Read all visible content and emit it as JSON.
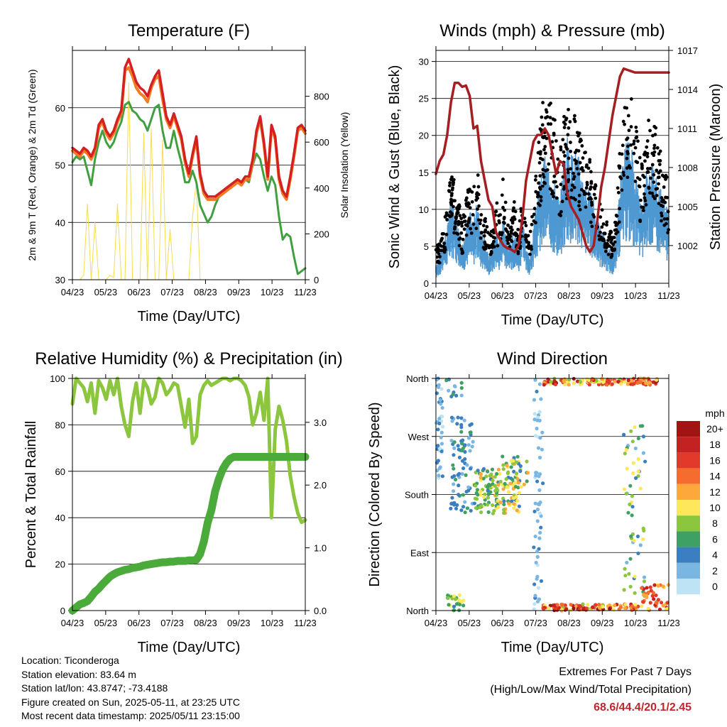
{
  "chart_data": [
    {
      "type": "line",
      "title": "Temperature (F)",
      "xlabel": "Time (Day/UTC)",
      "ylabel": "2m & 9m T (Red, Orange) & 2m Td (Green)",
      "y2label": "Solar Insolation (Yellow)",
      "x_ticks": [
        "04/23",
        "05/23",
        "06/23",
        "07/23",
        "08/23",
        "09/23",
        "10/23",
        "11/23"
      ],
      "ylim": [
        30,
        70
      ],
      "y_ticks": [
        30,
        40,
        50,
        60
      ],
      "y2lim": [
        0,
        1000
      ],
      "y2_ticks": [
        0,
        200,
        400,
        600,
        800
      ],
      "grid": "horizontal",
      "colors": {
        "t2m": "#d42020",
        "t9m": "#f47a24",
        "td": "#40a040",
        "solar": "#f5dc50"
      },
      "series": [
        {
          "key": "t2m",
          "values": [
            53,
            52.5,
            52,
            53,
            52.5,
            51.5,
            53,
            57,
            58,
            56,
            55,
            56,
            58,
            59.5,
            67,
            68.5,
            66.5,
            64.5,
            63.5,
            63,
            62,
            64,
            65.5,
            66.5,
            62.5,
            58.5,
            57,
            59,
            57,
            55,
            51,
            48.5,
            52,
            55,
            48.5,
            45.5,
            44.5,
            44.5,
            44.5,
            45,
            45.5,
            46,
            46.5,
            47,
            47.5,
            47,
            48,
            48,
            51,
            56,
            58.5,
            54,
            48,
            57,
            55,
            48,
            45.5,
            44.5,
            48,
            52,
            56.5,
            57,
            56
          ]
        },
        {
          "key": "t9m",
          "values": [
            52.5,
            52,
            51.5,
            52.5,
            52,
            51,
            52.5,
            56.5,
            57.5,
            55.5,
            54.5,
            55.5,
            57.5,
            59,
            66.5,
            67,
            65.5,
            63.5,
            62.5,
            62,
            61,
            63.5,
            65,
            65.5,
            61.5,
            58,
            56.5,
            58.5,
            56.5,
            54.5,
            50.5,
            48,
            51.5,
            54.5,
            48,
            45,
            44,
            44,
            44,
            44.5,
            45,
            45.5,
            46,
            46.5,
            47,
            46.5,
            47.5,
            47.5,
            50.5,
            55.5,
            58,
            53.5,
            47.5,
            56.5,
            54.5,
            47.5,
            45,
            44,
            47.5,
            51.5,
            56,
            56.5,
            55.5
          ]
        },
        {
          "key": "td",
          "values": [
            50.5,
            51.5,
            51,
            51.5,
            49,
            46.5,
            51,
            54,
            56,
            54,
            53,
            54,
            56,
            57.5,
            60.5,
            61,
            59.5,
            59,
            58,
            57.5,
            56,
            58,
            60,
            60.5,
            56,
            53,
            53,
            56,
            53,
            50.5,
            47,
            47,
            49,
            47,
            43,
            41.5,
            40,
            41,
            43,
            44.5,
            45,
            45.5,
            46,
            46.5,
            47,
            46.5,
            47.5,
            47,
            50,
            52,
            51,
            48,
            45.5,
            48,
            46.5,
            41,
            37,
            38,
            37.5,
            34,
            31,
            31.5,
            32
          ]
        },
        {
          "key": "solar",
          "values": [
            0,
            0,
            0,
            20,
            330,
            0,
            250,
            0,
            0,
            0,
            20,
            10,
            330,
            0,
            0,
            860,
            0,
            0,
            0,
            640,
            0,
            660,
            0,
            0,
            610,
            0,
            220,
            0,
            0,
            0,
            0,
            0,
            280,
            430,
            0,
            0,
            0,
            0,
            0,
            0,
            0,
            0,
            0,
            0,
            0,
            0,
            0,
            0,
            0,
            0,
            0,
            0,
            0,
            0,
            0,
            0,
            0,
            0,
            0,
            0,
            0,
            0,
            0
          ]
        }
      ]
    },
    {
      "type": "line",
      "title": "Winds (mph) & Pressure (mb)",
      "xlabel": "Time (Day/UTC)",
      "ylabel": "Sonic Wind & Gust (Blue, Black)",
      "y2label": "Station Pressure (Maroon)",
      "x_ticks": [
        "04/23",
        "05/23",
        "06/23",
        "07/23",
        "08/23",
        "09/23",
        "10/23",
        "11/23"
      ],
      "ylim": [
        0,
        31.5
      ],
      "y_ticks": [
        0,
        5,
        10,
        15,
        20,
        25,
        30
      ],
      "y2lim": [
        999.1,
        1017
      ],
      "y2_ticks": [
        1002,
        1005,
        1008,
        1011,
        1014,
        1017
      ],
      "grid": "horizontal",
      "colors": {
        "wind": "#4f98d2",
        "gust": "#000000",
        "pressure": "#a51e22"
      },
      "series": [
        {
          "key": "wind",
          "values": [
            2,
            3,
            5,
            6,
            10,
            8,
            7,
            4,
            6,
            8,
            7,
            9,
            6,
            5,
            3,
            4,
            6,
            5,
            8,
            4,
            5,
            6,
            4,
            8,
            4,
            3,
            6,
            10,
            12,
            14,
            13,
            12,
            11,
            9,
            13,
            16,
            14,
            15,
            14,
            12,
            11,
            10,
            9,
            7,
            6,
            5,
            4,
            3,
            5,
            11,
            14,
            16,
            15,
            13,
            10,
            9,
            12,
            14,
            13,
            12,
            10,
            9,
            8
          ]
        },
        {
          "key": "gust",
          "values": [
            4,
            5,
            7,
            9,
            14,
            12,
            10,
            7,
            10,
            13,
            11,
            14,
            9,
            8,
            6,
            7,
            10,
            8,
            13,
            7,
            8,
            10,
            6,
            12,
            7,
            6,
            11,
            17,
            20,
            24,
            22,
            21,
            19,
            15,
            20,
            21,
            19,
            20,
            18,
            17,
            16,
            15,
            13,
            11,
            9,
            8,
            7,
            6,
            8,
            16,
            21,
            23,
            22,
            20,
            16,
            14,
            18,
            20,
            19,
            18,
            15,
            13,
            12
          ]
        },
        {
          "key": "pressure",
          "values": [
            1007.5,
            1008.5,
            1009,
            1010.5,
            1013,
            1014.5,
            1014.5,
            1014.2,
            1014.3,
            1013.5,
            1011,
            1011.2,
            1008.5,
            1007,
            1005.5,
            1005,
            1003,
            1002.5,
            1002,
            1001.8,
            1001.7,
            1001.5,
            1002,
            1004,
            1007,
            1008.5,
            1010,
            1010.5,
            1010.5,
            1011,
            1010.5,
            1009,
            1007.5,
            1008.5,
            1008.3,
            1006,
            1005,
            1004.5,
            1004,
            1003,
            1002,
            1001.5,
            1002,
            1004,
            1006.5,
            1008,
            1010,
            1012,
            1013.5,
            1015,
            1015.6,
            1015.5,
            1015.4,
            1015.3,
            1015.3,
            1015.3,
            1015.3,
            1015.3,
            1015.3,
            1015.3,
            1015.3,
            1015.3,
            1015.3
          ]
        }
      ]
    },
    {
      "type": "line",
      "title": "Relative Humidity (%) & Precipitation (in)",
      "xlabel": "Time (Day/UTC)",
      "ylabel": "Percent & Total Rainfall",
      "x_ticks": [
        "04/23",
        "05/23",
        "06/23",
        "07/23",
        "08/23",
        "09/23",
        "10/23",
        "11/23"
      ],
      "ylim": [
        0,
        100
      ],
      "y_ticks": [
        0,
        20,
        40,
        60,
        80,
        100
      ],
      "y2lim": [
        0,
        3.7
      ],
      "y2_ticks": [
        "0.0",
        "1.0",
        "2.0",
        "3.0"
      ],
      "grid": "horizontal",
      "colors": {
        "rh": "#8cc63f",
        "precip": "#4aaa3a"
      },
      "series": [
        {
          "key": "rh",
          "values": [
            89,
            100,
            98,
            96,
            90,
            98,
            85,
            99,
            96,
            91,
            99,
            93,
            100,
            88,
            80,
            75,
            90,
            98,
            85,
            99,
            96,
            89,
            92,
            100,
            98,
            93,
            95,
            98,
            97,
            88,
            79,
            91,
            72,
            75,
            93,
            97,
            99,
            97,
            98,
            99,
            100,
            100,
            99,
            100,
            100,
            99,
            97,
            92,
            80,
            85,
            94,
            82,
            100,
            40,
            78,
            88,
            82,
            73,
            58,
            49,
            42,
            38,
            39
          ]
        },
        {
          "key": "precip",
          "values": [
            0,
            0.05,
            0.1,
            0.12,
            0.15,
            0.22,
            0.3,
            0.35,
            0.42,
            0.48,
            0.54,
            0.58,
            0.61,
            0.63,
            0.65,
            0.66,
            0.68,
            0.69,
            0.7,
            0.72,
            0.73,
            0.74,
            0.75,
            0.76,
            0.77,
            0.77,
            0.78,
            0.78,
            0.79,
            0.79,
            0.79,
            0.8,
            0.8,
            0.81,
            0.9,
            1.1,
            1.4,
            1.6,
            1.9,
            2.1,
            2.25,
            2.35,
            2.42,
            2.45,
            2.45,
            2.45,
            2.45,
            2.45,
            2.45,
            2.45,
            2.45,
            2.45,
            2.45,
            2.45,
            2.45,
            2.45,
            2.45,
            2.45,
            2.45,
            2.45,
            2.45,
            2.45,
            2.45
          ]
        }
      ]
    },
    {
      "type": "scatter",
      "title": "Wind Direction",
      "xlabel": "Time (Day/UTC)",
      "ylabel": "Direction (Colored By Speed)",
      "x_ticks": [
        "04/23",
        "05/23",
        "06/23",
        "07/23",
        "08/23",
        "09/23",
        "10/23",
        "11/23"
      ],
      "y_ticks": [
        "North",
        "East",
        "South",
        "West",
        "North"
      ],
      "y_degrees": [
        0,
        90,
        180,
        270,
        360
      ],
      "grid": "horizontal",
      "colorbar": {
        "unit": "mph",
        "labels": [
          "20+",
          "18",
          "16",
          "14",
          "12",
          "10",
          "8",
          "6",
          "4",
          "2",
          "0"
        ],
        "colors": [
          "#a01414",
          "#c42222",
          "#e23a2a",
          "#f46d2e",
          "#fca83a",
          "#fde75a",
          "#8cc63f",
          "#3fa064",
          "#3b7fc0",
          "#79b7e2",
          "#bde3f5"
        ]
      }
    }
  ],
  "footer": {
    "location": "Location: Ticonderoga",
    "elevation": "Station elevation: 83.64 m",
    "latlon": "Station lat/lon: 43.8747; -73.4188",
    "created": "Figure created on Sun, 2025-05-11, at 23:25 UTC",
    "recent": "Most recent data timestamp: 2025/05/11 23:15:00"
  },
  "extremes": {
    "title": "Extremes For Past 7 Days",
    "subtitle": "(High/Low/Max Wind/Total Precipitation)",
    "values": "68.6/44.4/20.1/2.45"
  }
}
